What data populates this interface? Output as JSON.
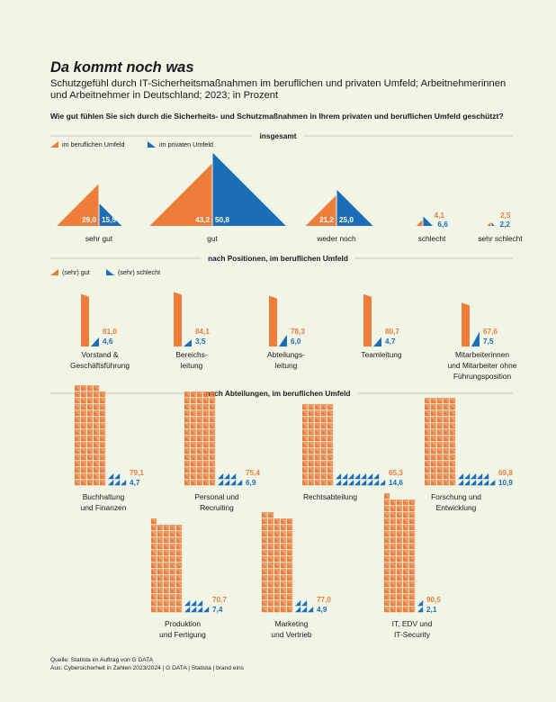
{
  "title": "Da kommt noch was",
  "subtitle": "Schutzgefühl durch IT-Sicherheitsmaßnahmen im beruflichen und privaten Umfeld; Arbeitnehmerinnen und Arbeitnehmer in Deutschland; 2023; in Prozent",
  "question": "Wie gut fühlen Sie sich durch die Sicherheits- und Schutzmaßnahmen in Ihrem privaten und beruflichen Umfeld geschützt?",
  "colors": {
    "orange": "#ee7d3c",
    "blue": "#1b6db8",
    "background": "#f0f5e6",
    "rule": "#b5b9ad"
  },
  "sources": {
    "line1": "Quelle: Statista im Auftrag von G DATA",
    "line2": "Aus: Cybersicherheit in Zahlen 2023/2024 | G DATA | Statista | brand eins"
  },
  "chart_data": [
    {
      "type": "bar",
      "section_label": "insgesamt",
      "legend": [
        "im beruflichen Umfeld",
        "im privaten Umfeld"
      ],
      "categories": [
        "sehr gut",
        "gut",
        "weder noch",
        "schlecht",
        "sehr schlecht"
      ],
      "series": [
        {
          "name": "im beruflichen Umfeld",
          "values": [
            29.0,
            43.2,
            21.2,
            4.1,
            2.5
          ]
        },
        {
          "name": "im privaten Umfeld",
          "values": [
            15.5,
            50.8,
            25.0,
            6.6,
            2.2
          ]
        }
      ],
      "value_labels": {
        "im beruflichen Umfeld": [
          "29,0",
          "43,2",
          "21,2",
          "4,1",
          "2,5"
        ],
        "im privaten Umfeld": [
          "15,5",
          "50,8",
          "25,0",
          "6,6",
          "2,2"
        ]
      }
    },
    {
      "type": "bar",
      "section_label": "nach Positionen, im beruflichen Umfeld",
      "legend": [
        "(sehr) gut",
        "(sehr) schlecht"
      ],
      "categories": [
        [
          "Vorstand &",
          "Geschäftsführung"
        ],
        [
          "Bereichs-",
          "leitung"
        ],
        [
          "Abteilungs-",
          "leitung"
        ],
        [
          "Teamleitung"
        ],
        [
          "Mitarbeiterinnen",
          "und Mitarbeiter ohne",
          "Führungsposition"
        ]
      ],
      "series": [
        {
          "name": "(sehr) gut",
          "values": [
            81.0,
            84.1,
            78.3,
            80.7,
            67.6
          ]
        },
        {
          "name": "(sehr) schlecht",
          "values": [
            4.6,
            3.5,
            6.0,
            4.7,
            7.5
          ]
        }
      ],
      "value_labels": {
        "(sehr) gut": [
          "81,0",
          "84,1",
          "78,3",
          "80,7",
          "67,6"
        ],
        "(sehr) schlecht": [
          "4,6",
          "3,5",
          "6,0",
          "4,7",
          "7,5"
        ]
      }
    },
    {
      "type": "bar",
      "section_label": "nach Abteilungen, im beruflichen Umfeld",
      "categories": [
        [
          "Buchhaltung",
          "und Finanzen"
        ],
        [
          "Personal und",
          "Recruiting"
        ],
        [
          "Rechtsabteilung"
        ],
        [
          "Forschung und",
          "Entwicklung"
        ],
        [
          "Produktion",
          "und Fertigung"
        ],
        [
          "Marketing",
          "und Vertrieb"
        ],
        [
          "IT, EDV und",
          "IT-Security"
        ]
      ],
      "series": [
        {
          "name": "(sehr) gut",
          "values": [
            79.1,
            75.4,
            65.3,
            69.8,
            70.7,
            77.0,
            90.5
          ]
        },
        {
          "name": "(sehr) schlecht",
          "values": [
            4.7,
            6.9,
            14.6,
            10.9,
            7.4,
            4.9,
            2.1
          ]
        }
      ],
      "value_labels": {
        "(sehr) gut": [
          "79,1",
          "75,4",
          "65,3",
          "69,8",
          "70,7",
          "77,0",
          "90,5"
        ],
        "(sehr) schlecht": [
          "4,7",
          "6,9",
          "14,6",
          "10,9",
          "7,4",
          "4,9",
          "2,1"
        ]
      }
    }
  ]
}
